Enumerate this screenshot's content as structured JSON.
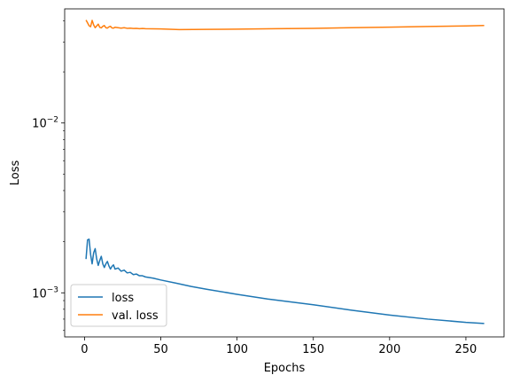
{
  "chart_data": {
    "type": "line",
    "xlabel": "Epochs",
    "ylabel": "Loss",
    "xlim": [
      -13,
      275
    ],
    "ylim": [
      0.00055,
      0.047
    ],
    "yscale": "log",
    "xticks": [
      0,
      50,
      100,
      150,
      200,
      250
    ],
    "yticks_major": [
      {
        "value": 0.001,
        "mantissa": "10",
        "exponent": "−3"
      },
      {
        "value": 0.01,
        "mantissa": "10",
        "exponent": "−2"
      }
    ],
    "legend_position": "lower-left",
    "series": [
      {
        "name": "loss",
        "color": "#1f77b4",
        "x": [
          1,
          2,
          3,
          4,
          5,
          6,
          7,
          8,
          9,
          10,
          11,
          12,
          13,
          14,
          15,
          16,
          17,
          18,
          19,
          20,
          22,
          24,
          26,
          28,
          30,
          32,
          34,
          36,
          38,
          40,
          45,
          50,
          60,
          70,
          80,
          100,
          120,
          150,
          175,
          200,
          225,
          250,
          262
        ],
        "y": [
          0.00158,
          0.00205,
          0.00207,
          0.00168,
          0.00148,
          0.00172,
          0.00182,
          0.00158,
          0.00145,
          0.00155,
          0.00164,
          0.00148,
          0.00141,
          0.00148,
          0.00153,
          0.00144,
          0.00138,
          0.00143,
          0.00146,
          0.00138,
          0.0014,
          0.00134,
          0.00136,
          0.00131,
          0.00132,
          0.00128,
          0.00129,
          0.00126,
          0.00126,
          0.00124,
          0.00122,
          0.00119,
          0.00114,
          0.00109,
          0.00105,
          0.00098,
          0.00092,
          0.00085,
          0.00079,
          0.00074,
          0.0007,
          0.00067,
          0.00066
        ]
      },
      {
        "name": "val. loss",
        "color": "#ff7f0e",
        "x": [
          1,
          2,
          3,
          4,
          5,
          6,
          7,
          8,
          9,
          10,
          11,
          12,
          13,
          14,
          15,
          16,
          17,
          18,
          19,
          20,
          22,
          24,
          26,
          28,
          30,
          32,
          34,
          36,
          38,
          40,
          50,
          62,
          80,
          100,
          125,
          150,
          175,
          200,
          225,
          250,
          262
        ],
        "y": [
          0.0404,
          0.0389,
          0.0374,
          0.0369,
          0.0402,
          0.0378,
          0.0364,
          0.0373,
          0.0382,
          0.0366,
          0.0363,
          0.0371,
          0.0375,
          0.0364,
          0.0362,
          0.0368,
          0.0371,
          0.0363,
          0.0362,
          0.0366,
          0.0364,
          0.0362,
          0.0364,
          0.0361,
          0.0362,
          0.036,
          0.0361,
          0.0359,
          0.036,
          0.0359,
          0.0358,
          0.0355,
          0.0356,
          0.0357,
          0.0359,
          0.0361,
          0.0364,
          0.0367,
          0.037,
          0.0373,
          0.0375
        ]
      }
    ]
  }
}
